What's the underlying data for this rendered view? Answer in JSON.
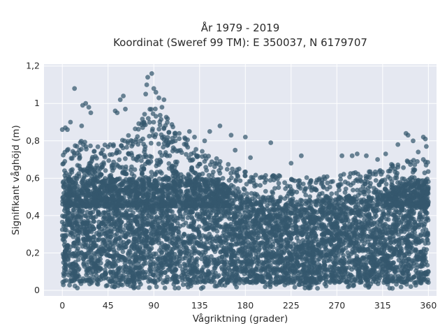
{
  "chart_data": {
    "type": "scatter",
    "title_lines": [
      "År 1979 - 2019",
      "Koordinat (Sweref 99 TM): E 350037, N 6179707"
    ],
    "xlabel": "Vågriktning (grader)",
    "ylabel": "Signifikant våghöjd (m)",
    "xlim": [
      -18,
      368
    ],
    "ylim": [
      -0.03,
      1.21
    ],
    "xticks": [
      0,
      45,
      90,
      135,
      180,
      225,
      270,
      315,
      360
    ],
    "xtick_labels": [
      "0",
      "45",
      "90",
      "135",
      "180",
      "225",
      "270",
      "315",
      "360"
    ],
    "yticks": [
      0,
      0.2,
      0.4,
      0.6,
      0.8,
      1,
      1.2
    ],
    "ytick_labels": [
      "0",
      "0,2",
      "0,4",
      "0,6",
      "0,8",
      "1",
      "1,2"
    ],
    "grid": true,
    "legend": "none",
    "marker_color": "#34586e",
    "plot_bg": "#e5e8f1",
    "dense_band": {
      "x_range": [
        0,
        360
      ],
      "y_range": [
        0.04,
        0.6
      ]
    },
    "upper_envelope": [
      {
        "x": 0,
        "y": 0.62
      },
      {
        "x": 10,
        "y": 0.66
      },
      {
        "x": 20,
        "y": 0.7
      },
      {
        "x": 30,
        "y": 0.68
      },
      {
        "x": 45,
        "y": 0.66
      },
      {
        "x": 60,
        "y": 0.7
      },
      {
        "x": 75,
        "y": 0.78
      },
      {
        "x": 85,
        "y": 0.86
      },
      {
        "x": 95,
        "y": 0.86
      },
      {
        "x": 105,
        "y": 0.8
      },
      {
        "x": 115,
        "y": 0.72
      },
      {
        "x": 125,
        "y": 0.68
      },
      {
        "x": 135,
        "y": 0.64
      },
      {
        "x": 150,
        "y": 0.6
      },
      {
        "x": 165,
        "y": 0.55
      },
      {
        "x": 180,
        "y": 0.52
      },
      {
        "x": 200,
        "y": 0.5
      },
      {
        "x": 225,
        "y": 0.49
      },
      {
        "x": 250,
        "y": 0.48
      },
      {
        "x": 270,
        "y": 0.5
      },
      {
        "x": 300,
        "y": 0.52
      },
      {
        "x": 320,
        "y": 0.55
      },
      {
        "x": 340,
        "y": 0.58
      },
      {
        "x": 360,
        "y": 0.6
      }
    ],
    "outliers": [
      {
        "x": 88,
        "y": 1.16
      },
      {
        "x": 84,
        "y": 1.14
      },
      {
        "x": 83,
        "y": 1.1
      },
      {
        "x": 90,
        "y": 1.08
      },
      {
        "x": 92,
        "y": 1.06
      },
      {
        "x": 12,
        "y": 1.08
      },
      {
        "x": 82,
        "y": 1.05
      },
      {
        "x": 60,
        "y": 1.04
      },
      {
        "x": 95,
        "y": 1.03
      },
      {
        "x": 100,
        "y": 1.02
      },
      {
        "x": 57,
        "y": 1.02
      },
      {
        "x": 23,
        "y": 1.0
      },
      {
        "x": 20,
        "y": 0.99
      },
      {
        "x": 26,
        "y": 0.98
      },
      {
        "x": 62,
        "y": 0.97
      },
      {
        "x": 52,
        "y": 0.96
      },
      {
        "x": 54,
        "y": 0.95
      },
      {
        "x": 98,
        "y": 0.98
      },
      {
        "x": 28,
        "y": 0.95
      },
      {
        "x": 8,
        "y": 0.9
      },
      {
        "x": 3,
        "y": 0.87
      },
      {
        "x": 0,
        "y": 0.86
      },
      {
        "x": 5,
        "y": 0.86
      },
      {
        "x": 19,
        "y": 0.88
      },
      {
        "x": 155,
        "y": 0.88
      },
      {
        "x": 145,
        "y": 0.85
      },
      {
        "x": 166,
        "y": 0.83
      },
      {
        "x": 180,
        "y": 0.82
      },
      {
        "x": 205,
        "y": 0.79
      },
      {
        "x": 338,
        "y": 0.84
      },
      {
        "x": 340,
        "y": 0.83
      },
      {
        "x": 355,
        "y": 0.82
      },
      {
        "x": 357,
        "y": 0.81
      },
      {
        "x": 330,
        "y": 0.78
      },
      {
        "x": 345,
        "y": 0.8
      },
      {
        "x": 358,
        "y": 0.77
      },
      {
        "x": 285,
        "y": 0.72
      },
      {
        "x": 290,
        "y": 0.73
      },
      {
        "x": 299,
        "y": 0.72
      },
      {
        "x": 275,
        "y": 0.72
      },
      {
        "x": 310,
        "y": 0.7
      },
      {
        "x": 318,
        "y": 0.73
      },
      {
        "x": 350,
        "y": 0.74
      },
      {
        "x": 355,
        "y": 0.7
      },
      {
        "x": 235,
        "y": 0.72
      },
      {
        "x": 225,
        "y": 0.68
      },
      {
        "x": 185,
        "y": 0.71
      },
      {
        "x": 170,
        "y": 0.75
      },
      {
        "x": 140,
        "y": 0.8
      },
      {
        "x": 130,
        "y": 0.82
      },
      {
        "x": 125,
        "y": 0.85
      },
      {
        "x": 115,
        "y": 0.84
      }
    ]
  }
}
